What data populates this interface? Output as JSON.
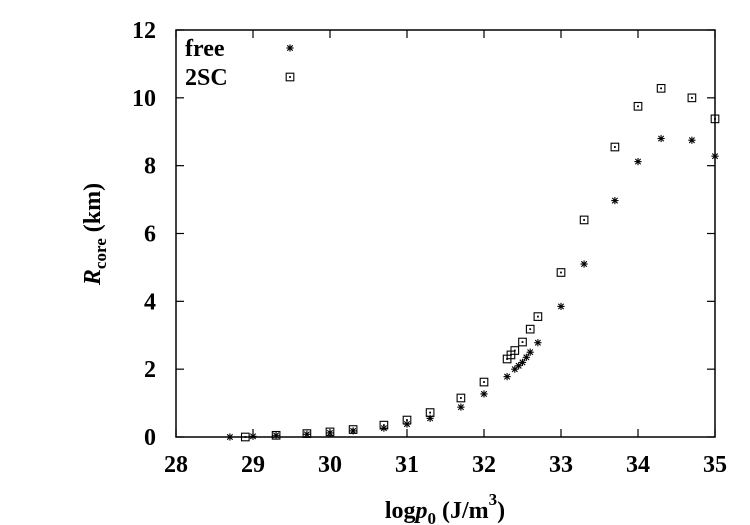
{
  "chart_data": {
    "type": "scatter",
    "xlim": [
      28,
      35
    ],
    "ylim": [
      0,
      12
    ],
    "xticks": [
      "28",
      "29",
      "30",
      "31",
      "32",
      "33",
      "34",
      "35"
    ],
    "yticks": [
      "0",
      "2",
      "4",
      "6",
      "8",
      "10",
      "12"
    ],
    "xlabel": {
      "prefix": "log",
      "var": "p",
      "sub": "0",
      "unit_open": " (J/m",
      "sup": "3",
      "unit_close": ")"
    },
    "ylabel": {
      "var": "R",
      "sub": "core",
      "unit": " (km)"
    },
    "legend_position": "top-left",
    "grid": false,
    "series": [
      {
        "name": "free",
        "marker": "asterisk",
        "points": [
          [
            28.7,
            0.0
          ],
          [
            29.0,
            0.02
          ],
          [
            29.3,
            0.05
          ],
          [
            29.7,
            0.08
          ],
          [
            30.0,
            0.12
          ],
          [
            30.3,
            0.18
          ],
          [
            30.7,
            0.26
          ],
          [
            31.0,
            0.38
          ],
          [
            31.3,
            0.55
          ],
          [
            31.7,
            0.88
          ],
          [
            32.0,
            1.27
          ],
          [
            32.3,
            1.78
          ],
          [
            32.4,
            2.0
          ],
          [
            32.45,
            2.1
          ],
          [
            32.5,
            2.2
          ],
          [
            32.55,
            2.35
          ],
          [
            32.6,
            2.5
          ],
          [
            32.7,
            2.78
          ],
          [
            33.0,
            3.85
          ],
          [
            33.3,
            5.1
          ],
          [
            33.7,
            6.97
          ],
          [
            34.0,
            8.12
          ],
          [
            34.3,
            8.8
          ],
          [
            34.7,
            8.75
          ],
          [
            35.0,
            8.28
          ]
        ]
      },
      {
        "name": "2SC",
        "marker": "square",
        "points": [
          [
            28.9,
            0.0
          ],
          [
            29.3,
            0.05
          ],
          [
            29.7,
            0.1
          ],
          [
            30.0,
            0.15
          ],
          [
            30.3,
            0.22
          ],
          [
            30.7,
            0.35
          ],
          [
            31.0,
            0.5
          ],
          [
            31.3,
            0.72
          ],
          [
            31.7,
            1.15
          ],
          [
            32.0,
            1.62
          ],
          [
            32.3,
            2.3
          ],
          [
            32.35,
            2.42
          ],
          [
            32.4,
            2.55
          ],
          [
            32.5,
            2.8
          ],
          [
            32.6,
            3.18
          ],
          [
            32.7,
            3.55
          ],
          [
            33.0,
            4.85
          ],
          [
            33.3,
            6.4
          ],
          [
            33.7,
            8.55
          ],
          [
            34.0,
            9.75
          ],
          [
            34.3,
            10.28
          ],
          [
            34.7,
            10.0
          ],
          [
            35.0,
            9.38
          ]
        ]
      }
    ]
  }
}
